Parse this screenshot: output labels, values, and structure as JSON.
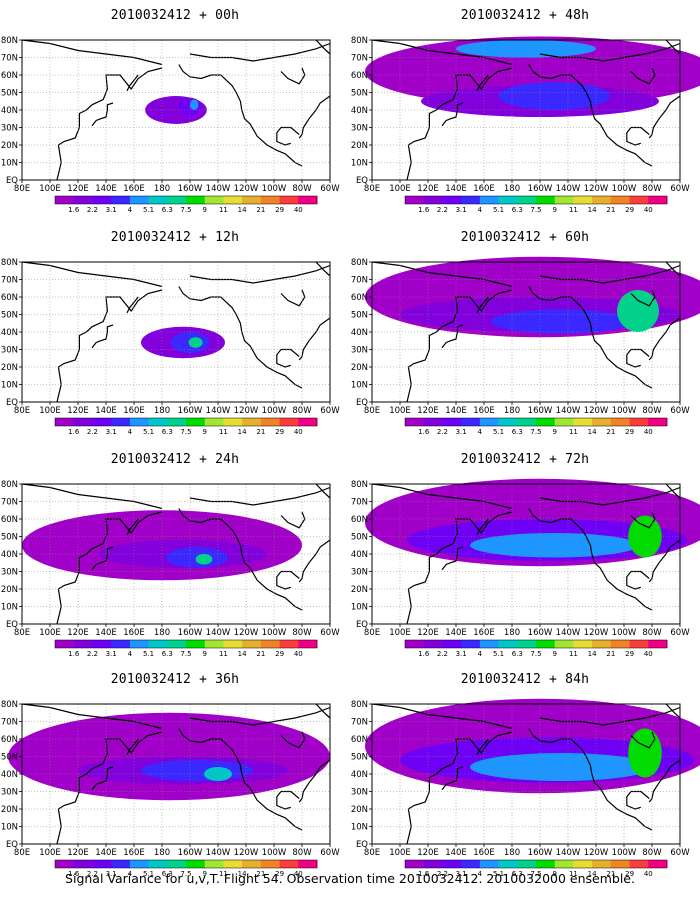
{
  "chart_data": {
    "type": "heatmap",
    "caption": "Signal Variance for u,v,T. Flight 54. Observation time 2010032412. 2010032000 ensemble.",
    "lon_ticks": [
      "80E",
      "100E",
      "120E",
      "140E",
      "160E",
      "180",
      "160W",
      "140W",
      "120W",
      "100W",
      "80W",
      "60W"
    ],
    "lat_ticks": [
      "EQ",
      "10N",
      "20N",
      "30N",
      "40N",
      "50N",
      "60N",
      "70N",
      "80N"
    ],
    "colorbar_levels": [
      "1.6",
      "2.2",
      "3.1",
      "4",
      "5.1",
      "6.3",
      "7.5",
      "9",
      "11",
      "14",
      "21",
      "29",
      "40"
    ],
    "colorbar_colors": [
      "#a000c8",
      "#8200dc",
      "#6e00f5",
      "#3a28ff",
      "#1e96ff",
      "#00c8c8",
      "#00d28c",
      "#00dc00",
      "#a0e632",
      "#e6dc32",
      "#e6af2d",
      "#f08228",
      "#fa3c3c",
      "#f00082"
    ],
    "grid": true,
    "panels": [
      {
        "title": "2010032412 + 00h",
        "lead_hours": 0,
        "blobs": [
          {
            "lon": 190,
            "lat": 40,
            "rlon": 22,
            "rlat": 8,
            "level": 1
          },
          {
            "lon": 200,
            "lat": 42,
            "rlon": 8,
            "rlat": 5,
            "level": 2
          },
          {
            "lon": 203,
            "lat": 43,
            "rlon": 3,
            "rlat": 3,
            "level": 4
          }
        ]
      },
      {
        "title": "2010032412 + 12h",
        "lead_hours": 12,
        "blobs": [
          {
            "lon": 195,
            "lat": 34,
            "rlon": 30,
            "rlat": 9,
            "level": 1
          },
          {
            "lon": 200,
            "lat": 34,
            "rlon": 14,
            "rlat": 6,
            "level": 3
          },
          {
            "lon": 204,
            "lat": 34,
            "rlon": 5,
            "rlat": 3,
            "level": 6
          }
        ]
      },
      {
        "title": "2010032412 + 24h",
        "lead_hours": 24,
        "blobs": [
          {
            "lon": 180,
            "lat": 45,
            "rlon": 100,
            "rlat": 20,
            "level": 0
          },
          {
            "lon": 195,
            "lat": 40,
            "rlon": 60,
            "rlat": 8,
            "level": 1
          },
          {
            "lon": 205,
            "lat": 38,
            "rlon": 22,
            "rlat": 6,
            "level": 3
          },
          {
            "lon": 210,
            "lat": 37,
            "rlon": 6,
            "rlat": 3,
            "level": 6
          }
        ]
      },
      {
        "title": "2010032412 + 36h",
        "lead_hours": 36,
        "blobs": [
          {
            "lon": 185,
            "lat": 50,
            "rlon": 115,
            "rlat": 25,
            "level": 0
          },
          {
            "lon": 195,
            "lat": 42,
            "rlon": 75,
            "rlat": 8,
            "level": 1
          },
          {
            "lon": 205,
            "lat": 42,
            "rlon": 40,
            "rlat": 6,
            "level": 3
          },
          {
            "lon": 220,
            "lat": 40,
            "rlon": 10,
            "rlat": 4,
            "level": 5
          }
        ]
      },
      {
        "title": "2010032412 + 48h",
        "lead_hours": 48,
        "blobs": [
          {
            "lon": 200,
            "lat": 62,
            "rlon": 125,
            "rlat": 20,
            "level": 0
          },
          {
            "lon": 200,
            "lat": 45,
            "rlon": 85,
            "rlat": 9,
            "level": 1
          },
          {
            "lon": 210,
            "lat": 48,
            "rlon": 40,
            "rlat": 8,
            "level": 3
          },
          {
            "lon": 190,
            "lat": 75,
            "rlon": 50,
            "rlat": 5,
            "level": 4
          }
        ]
      },
      {
        "title": "2010032412 + 60h",
        "lead_hours": 60,
        "blobs": [
          {
            "lon": 200,
            "lat": 60,
            "rlon": 125,
            "rlat": 23,
            "level": 0
          },
          {
            "lon": 200,
            "lat": 50,
            "rlon": 100,
            "rlat": 10,
            "level": 1
          },
          {
            "lon": 215,
            "lat": 46,
            "rlon": 50,
            "rlat": 7,
            "level": 3
          },
          {
            "lon": 270,
            "lat": 52,
            "rlon": 15,
            "rlat": 12,
            "level": 6
          }
        ]
      },
      {
        "title": "2010032412 + 72h",
        "lead_hours": 72,
        "blobs": [
          {
            "lon": 200,
            "lat": 58,
            "rlon": 125,
            "rlat": 25,
            "level": 0
          },
          {
            "lon": 205,
            "lat": 48,
            "rlon": 100,
            "rlat": 12,
            "level": 2
          },
          {
            "lon": 210,
            "lat": 45,
            "rlon": 60,
            "rlat": 7,
            "level": 4
          },
          {
            "lon": 275,
            "lat": 50,
            "rlon": 12,
            "rlat": 12,
            "level": 7
          }
        ]
      },
      {
        "title": "2010032412 + 84h",
        "lead_hours": 84,
        "blobs": [
          {
            "lon": 200,
            "lat": 56,
            "rlon": 125,
            "rlat": 27,
            "level": 0
          },
          {
            "lon": 205,
            "lat": 48,
            "rlon": 105,
            "rlat": 13,
            "level": 2
          },
          {
            "lon": 215,
            "lat": 44,
            "rlon": 65,
            "rlat": 8,
            "level": 4
          },
          {
            "lon": 275,
            "lat": 52,
            "rlon": 12,
            "rlat": 14,
            "level": 7
          }
        ]
      }
    ]
  }
}
